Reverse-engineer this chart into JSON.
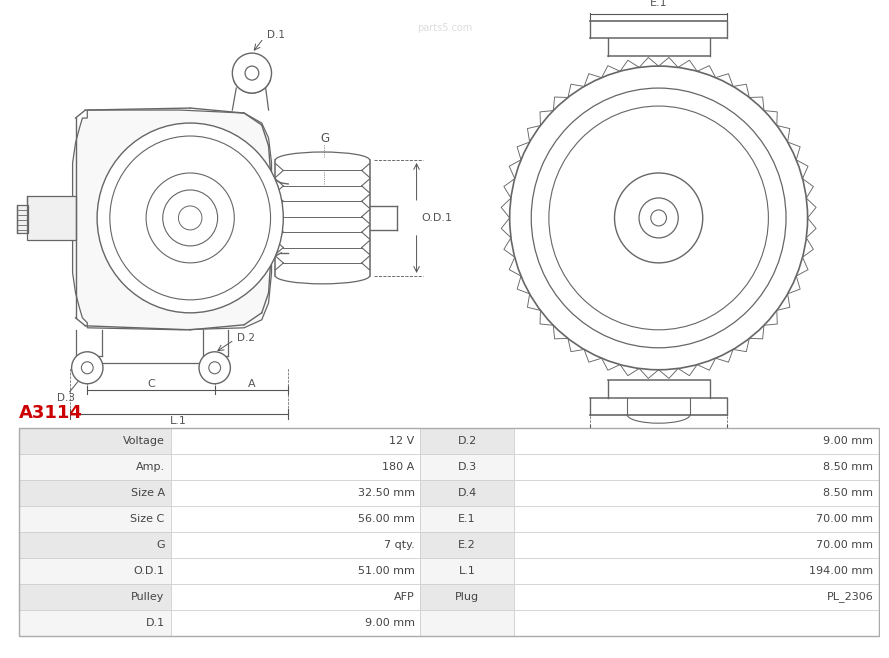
{
  "title": "A3114",
  "title_color": "#cc0000",
  "background_color": "#ffffff",
  "table": {
    "rows": [
      [
        "Voltage",
        "12 V",
        "D.2",
        "9.00 mm"
      ],
      [
        "Amp.",
        "180 A",
        "D.3",
        "8.50 mm"
      ],
      [
        "Size A",
        "32.50 mm",
        "D.4",
        "8.50 mm"
      ],
      [
        "Size C",
        "56.00 mm",
        "E.1",
        "70.00 mm"
      ],
      [
        "G",
        "7 qty.",
        "E.2",
        "70.00 mm"
      ],
      [
        "O.D.1",
        "51.00 mm",
        "L.1",
        "194.00 mm"
      ],
      [
        "Pulley",
        "AFP",
        "Plug",
        "PL_2306"
      ],
      [
        "D.1",
        "9.00 mm",
        "",
        ""
      ]
    ]
  },
  "row_colors": [
    "#e8e8e8",
    "#f5f5f5"
  ],
  "border_color": "#cccccc",
  "text_color": "#444444",
  "line_color": "#666666",
  "dim_color": "#555555"
}
